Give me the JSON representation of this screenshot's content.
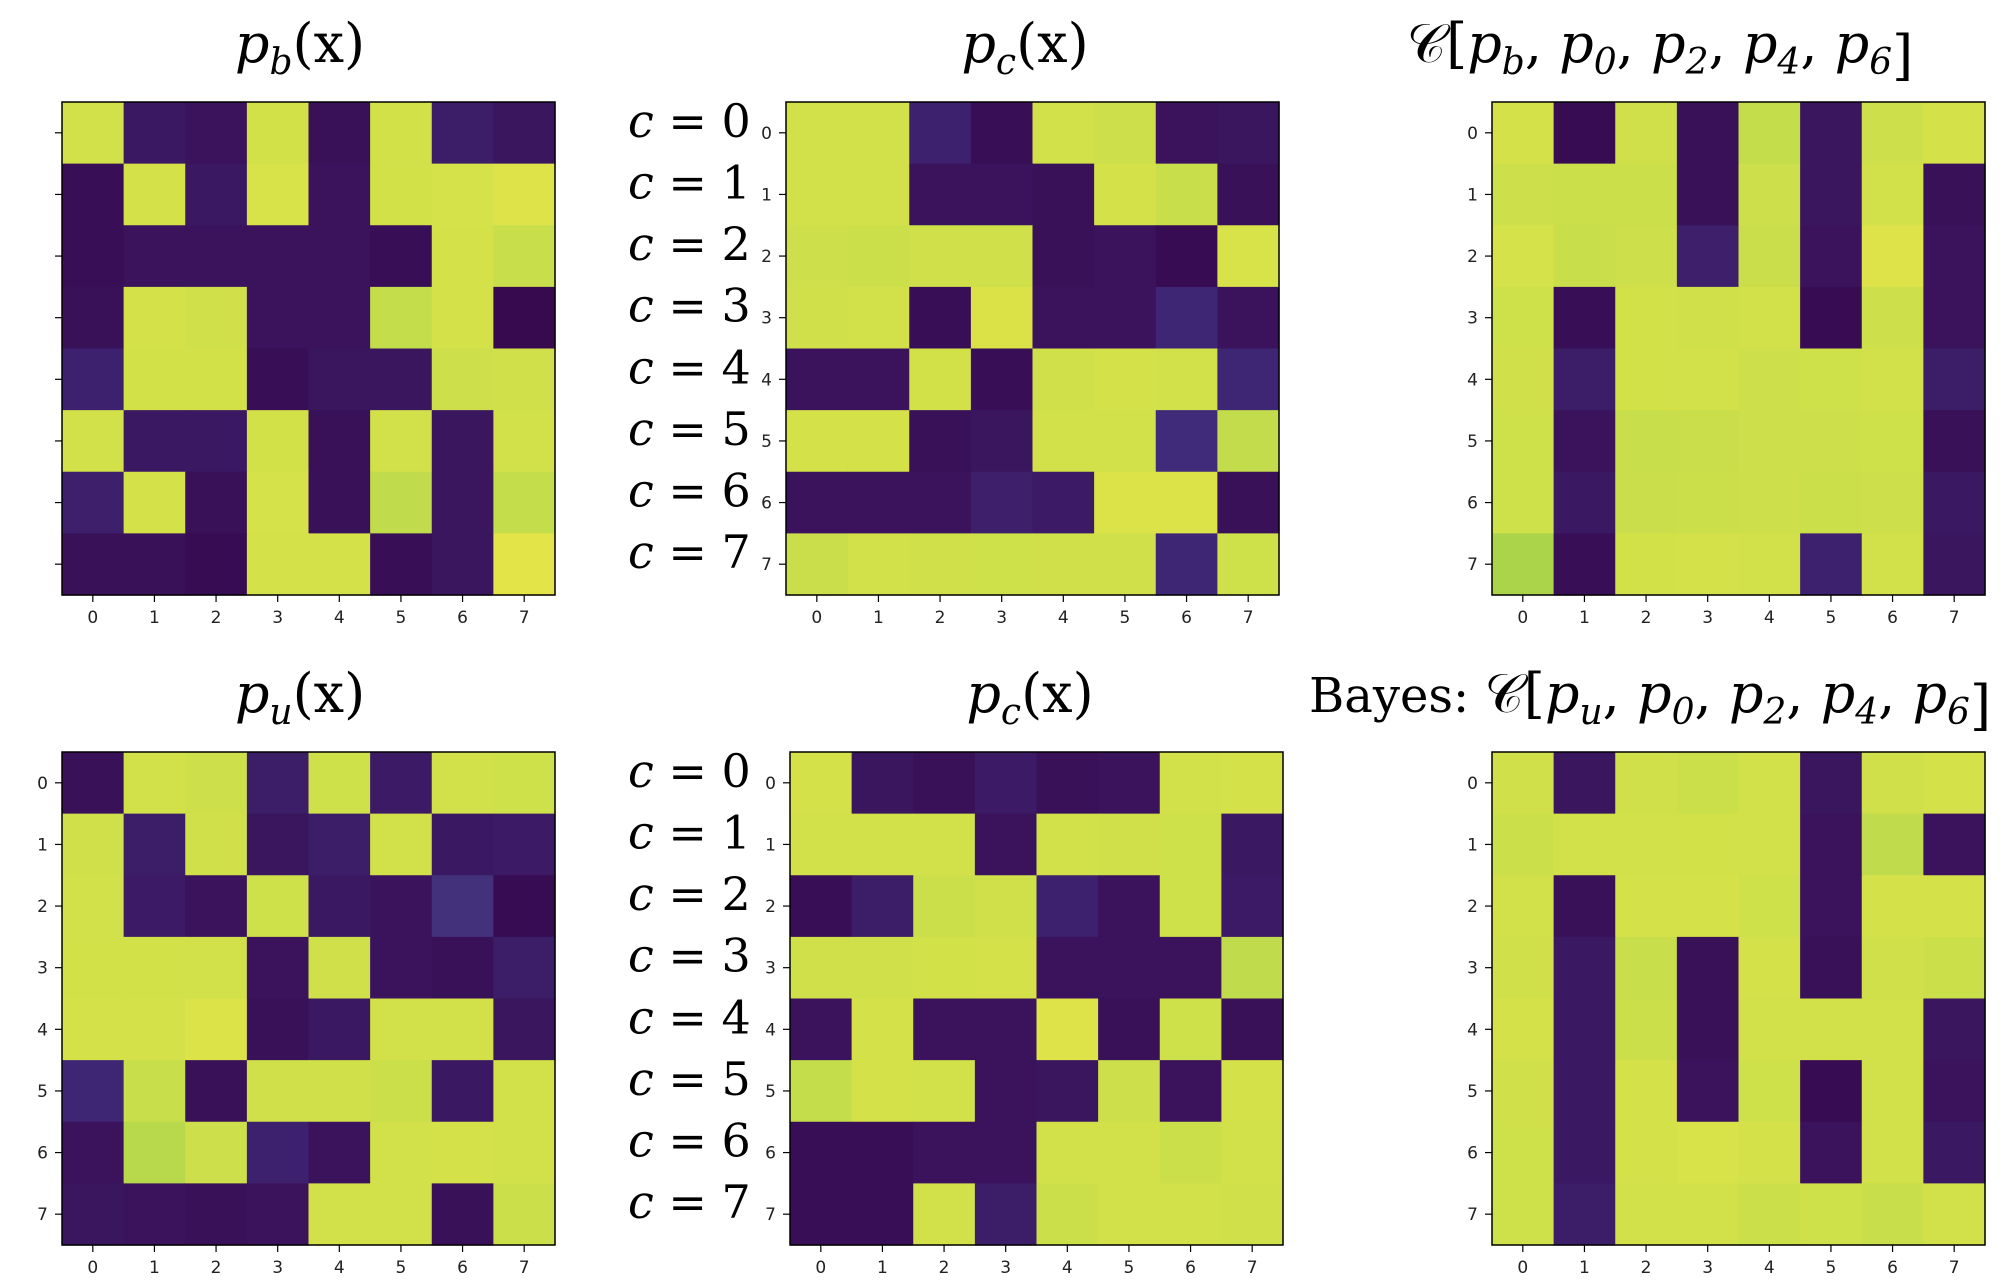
{
  "palette": {
    "dark": "#3a1a5c",
    "light": "#d2e04a"
  },
  "chart_data": [
    {
      "type": "heatmap",
      "id": "top-left",
      "title_base": "p",
      "title_sub": "b",
      "title_tail": "(x)",
      "show_tick_labels_y": false,
      "x_ticks": [
        "0",
        "1",
        "2",
        "3",
        "4",
        "5",
        "6",
        "7"
      ],
      "y_ticks": [
        "0",
        "1",
        "2",
        "3",
        "4",
        "5",
        "6",
        "7"
      ],
      "values": [
        [
          0.86,
          0.06,
          0.04,
          0.87,
          0.03,
          0.87,
          0.08,
          0.05
        ],
        [
          0.02,
          0.88,
          0.06,
          0.9,
          0.04,
          0.87,
          0.89,
          0.93
        ],
        [
          0.02,
          0.04,
          0.04,
          0.04,
          0.04,
          0.02,
          0.88,
          0.8
        ],
        [
          0.03,
          0.88,
          0.85,
          0.04,
          0.04,
          0.78,
          0.88,
          0.0
        ],
        [
          0.1,
          0.87,
          0.87,
          0.02,
          0.05,
          0.05,
          0.83,
          0.85
        ],
        [
          0.86,
          0.06,
          0.06,
          0.87,
          0.03,
          0.86,
          0.05,
          0.86
        ],
        [
          0.09,
          0.88,
          0.03,
          0.89,
          0.03,
          0.76,
          0.05,
          0.78
        ],
        [
          0.03,
          0.03,
          0.01,
          0.88,
          0.88,
          0.02,
          0.05,
          0.96
        ]
      ]
    },
    {
      "type": "heatmap",
      "id": "top-middle",
      "title_base": "p",
      "title_sub": "c",
      "title_tail": "(x)",
      "show_tick_labels_y": true,
      "x_ticks": [
        "0",
        "1",
        "2",
        "3",
        "4",
        "5",
        "6",
        "7"
      ],
      "y_ticks": [
        "0",
        "1",
        "2",
        "3",
        "4",
        "5",
        "6",
        "7"
      ],
      "row_labels": [
        "c = 0",
        "c = 1",
        "c = 2",
        "c = 3",
        "c = 4",
        "c = 5",
        "c = 6",
        "c = 7"
      ],
      "values": [
        [
          0.86,
          0.86,
          0.1,
          0.02,
          0.86,
          0.83,
          0.04,
          0.05
        ],
        [
          0.86,
          0.86,
          0.04,
          0.04,
          0.03,
          0.88,
          0.8,
          0.03
        ],
        [
          0.83,
          0.82,
          0.85,
          0.85,
          0.03,
          0.04,
          0.01,
          0.9
        ],
        [
          0.85,
          0.86,
          0.02,
          0.91,
          0.04,
          0.04,
          0.12,
          0.04
        ],
        [
          0.04,
          0.04,
          0.87,
          0.02,
          0.85,
          0.88,
          0.86,
          0.12
        ],
        [
          0.88,
          0.88,
          0.03,
          0.05,
          0.86,
          0.86,
          0.14,
          0.77
        ],
        [
          0.04,
          0.04,
          0.04,
          0.09,
          0.07,
          0.92,
          0.92,
          0.03
        ],
        [
          0.81,
          0.86,
          0.85,
          0.84,
          0.85,
          0.85,
          0.12,
          0.84
        ]
      ]
    },
    {
      "type": "heatmap",
      "id": "top-right",
      "title_prefix": "",
      "title_math": "𝒞[p_b, p_0, p_2, p_4, p_6]",
      "show_tick_labels_y": true,
      "x_ticks": [
        "0",
        "1",
        "2",
        "3",
        "4",
        "5",
        "6",
        "7"
      ],
      "y_ticks": [
        "0",
        "1",
        "2",
        "3",
        "4",
        "5",
        "6",
        "7"
      ],
      "values": [
        [
          0.88,
          0.01,
          0.85,
          0.03,
          0.78,
          0.05,
          0.83,
          0.88
        ],
        [
          0.83,
          0.82,
          0.82,
          0.03,
          0.83,
          0.05,
          0.86,
          0.03
        ],
        [
          0.89,
          0.8,
          0.83,
          0.09,
          0.81,
          0.04,
          0.93,
          0.04
        ],
        [
          0.84,
          0.02,
          0.87,
          0.85,
          0.86,
          0.01,
          0.83,
          0.04
        ],
        [
          0.85,
          0.08,
          0.87,
          0.86,
          0.83,
          0.84,
          0.86,
          0.08
        ],
        [
          0.84,
          0.04,
          0.8,
          0.81,
          0.83,
          0.83,
          0.84,
          0.03
        ],
        [
          0.84,
          0.06,
          0.81,
          0.82,
          0.83,
          0.82,
          0.83,
          0.06
        ],
        [
          0.66,
          0.02,
          0.87,
          0.88,
          0.86,
          0.1,
          0.86,
          0.05
        ]
      ]
    },
    {
      "type": "heatmap",
      "id": "bottom-left",
      "title_base": "p",
      "title_sub": "u",
      "title_tail": "(x)",
      "show_tick_labels_y": true,
      "x_ticks": [
        "0",
        "1",
        "2",
        "3",
        "4",
        "5",
        "6",
        "7"
      ],
      "y_ticks": [
        "0",
        "1",
        "2",
        "3",
        "4",
        "5",
        "6",
        "7"
      ],
      "values": [
        [
          0.03,
          0.86,
          0.83,
          0.08,
          0.84,
          0.07,
          0.86,
          0.84
        ],
        [
          0.85,
          0.08,
          0.85,
          0.05,
          0.08,
          0.86,
          0.06,
          0.07
        ],
        [
          0.86,
          0.07,
          0.04,
          0.84,
          0.06,
          0.04,
          0.16,
          0.01
        ],
        [
          0.87,
          0.87,
          0.86,
          0.04,
          0.85,
          0.04,
          0.03,
          0.08
        ],
        [
          0.88,
          0.88,
          0.92,
          0.03,
          0.06,
          0.86,
          0.86,
          0.05
        ],
        [
          0.12,
          0.8,
          0.03,
          0.85,
          0.85,
          0.82,
          0.06,
          0.86
        ],
        [
          0.04,
          0.72,
          0.83,
          0.1,
          0.04,
          0.86,
          0.88,
          0.86
        ],
        [
          0.05,
          0.04,
          0.03,
          0.04,
          0.86,
          0.86,
          0.03,
          0.82
        ]
      ]
    },
    {
      "type": "heatmap",
      "id": "bottom-middle",
      "title_base": "p",
      "title_sub": "c",
      "title_tail": "(x)",
      "show_tick_labels_y": true,
      "x_ticks": [
        "0",
        "1",
        "2",
        "3",
        "4",
        "5",
        "6",
        "7"
      ],
      "y_ticks": [
        "0",
        "1",
        "2",
        "3",
        "4",
        "5",
        "6",
        "7"
      ],
      "row_labels": [
        "c = 0",
        "c = 1",
        "c = 2",
        "c = 3",
        "c = 4",
        "c = 5",
        "c = 6",
        "c = 7"
      ],
      "values": [
        [
          0.88,
          0.05,
          0.03,
          0.07,
          0.03,
          0.04,
          0.86,
          0.88
        ],
        [
          0.86,
          0.86,
          0.86,
          0.04,
          0.86,
          0.85,
          0.84,
          0.06
        ],
        [
          0.02,
          0.08,
          0.82,
          0.85,
          0.1,
          0.04,
          0.84,
          0.07
        ],
        [
          0.85,
          0.85,
          0.87,
          0.88,
          0.04,
          0.04,
          0.04,
          0.76
        ],
        [
          0.04,
          0.88,
          0.04,
          0.04,
          0.93,
          0.03,
          0.84,
          0.03
        ],
        [
          0.78,
          0.88,
          0.86,
          0.04,
          0.05,
          0.83,
          0.04,
          0.88
        ],
        [
          0.02,
          0.02,
          0.04,
          0.04,
          0.86,
          0.86,
          0.82,
          0.86
        ],
        [
          0.02,
          0.02,
          0.86,
          0.08,
          0.82,
          0.86,
          0.86,
          0.85
        ]
      ]
    },
    {
      "type": "heatmap",
      "id": "bottom-right",
      "title_prefix": "Bayes: ",
      "title_math": "𝒞[p_u, p_0, p_2, p_4, p_6]",
      "show_tick_labels_y": true,
      "x_ticks": [
        "0",
        "1",
        "2",
        "3",
        "4",
        "5",
        "6",
        "7"
      ],
      "y_ticks": [
        "0",
        "1",
        "2",
        "3",
        "4",
        "5",
        "6",
        "7"
      ],
      "values": [
        [
          0.85,
          0.05,
          0.85,
          0.82,
          0.86,
          0.05,
          0.85,
          0.88
        ],
        [
          0.82,
          0.86,
          0.86,
          0.87,
          0.86,
          0.04,
          0.76,
          0.04
        ],
        [
          0.86,
          0.03,
          0.88,
          0.88,
          0.84,
          0.04,
          0.88,
          0.88
        ],
        [
          0.85,
          0.06,
          0.8,
          0.03,
          0.88,
          0.03,
          0.85,
          0.82
        ],
        [
          0.88,
          0.06,
          0.82,
          0.03,
          0.86,
          0.86,
          0.86,
          0.05
        ],
        [
          0.85,
          0.06,
          0.88,
          0.04,
          0.84,
          0.01,
          0.86,
          0.04
        ],
        [
          0.84,
          0.06,
          0.88,
          0.9,
          0.88,
          0.04,
          0.86,
          0.06
        ],
        [
          0.84,
          0.08,
          0.86,
          0.86,
          0.82,
          0.84,
          0.8,
          0.86
        ]
      ]
    }
  ]
}
